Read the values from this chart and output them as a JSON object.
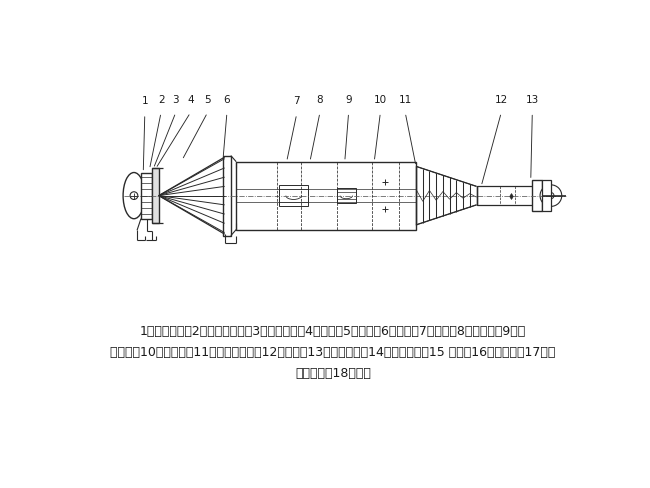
{
  "background_color": "#ffffff",
  "figure_width": 6.5,
  "figure_height": 4.88,
  "dpi": 100,
  "caption_line1": "1一限位装置；2一防带杆装置；3一上端法兰；4一挡环；5一转环；6一芜杆；7一键条；8一加压台；9一导",
  "caption_line2": "向斜块；10一分水盘；11一下减震装置；12一方头；13一錢杆销轴；14一减震总成；15 一杆；16一中间杆；17一防",
  "caption_line3": "带杆托盘；18一扁头",
  "line_color": "#2a2a2a",
  "text_color": "#1a1a1a"
}
